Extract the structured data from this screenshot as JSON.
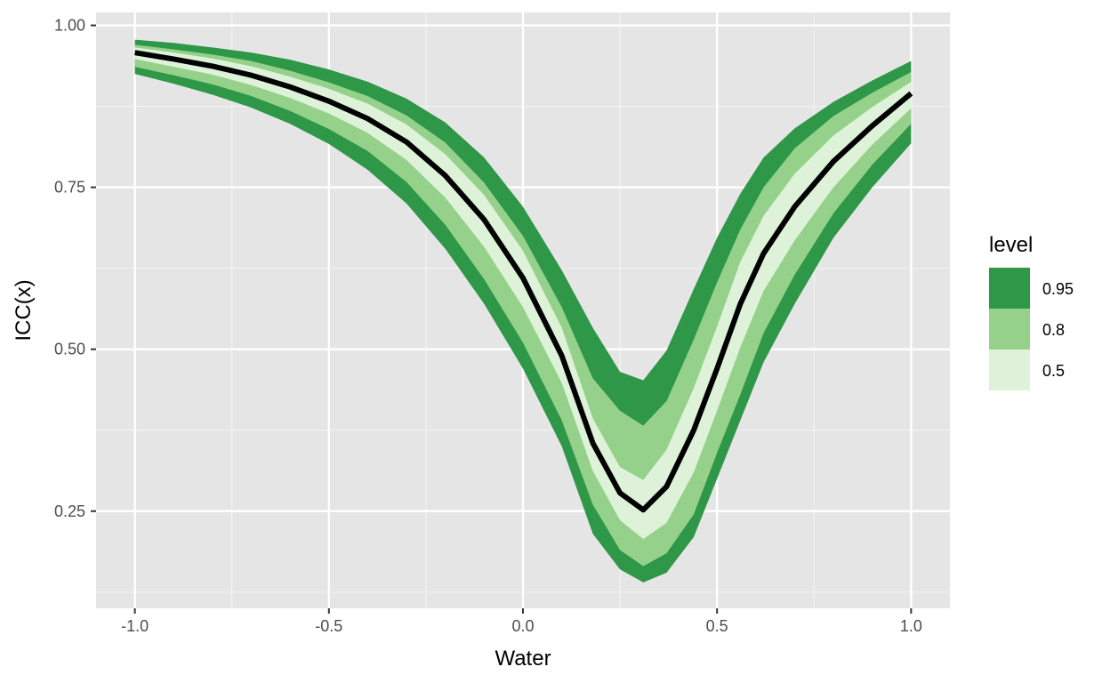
{
  "chart_data": {
    "type": "area",
    "title": "",
    "xlabel": "Water",
    "ylabel": "ICC(x)",
    "xlim": [
      -1.1,
      1.1
    ],
    "ylim": [
      0.1,
      1.02
    ],
    "x_ticks": [
      -1.0,
      -0.5,
      0.0,
      0.5,
      1.0
    ],
    "x_tick_labels": [
      "-1.0",
      "-0.5",
      "0.0",
      "0.5",
      "1.0"
    ],
    "y_ticks": [
      0.25,
      0.5,
      0.75,
      1.0
    ],
    "y_tick_labels": [
      "0.25",
      "0.50",
      "0.75",
      "1.00"
    ],
    "grid": true,
    "legend": {
      "title": "level",
      "position": "right",
      "entries": [
        {
          "label": "0.95",
          "color": "#2e9748"
        },
        {
          "label": "0.8",
          "color": "#95d18a"
        },
        {
          "label": "0.5",
          "color": "#ddf2d8"
        }
      ]
    },
    "x": [
      -1.0,
      -0.9,
      -0.8,
      -0.7,
      -0.6,
      -0.5,
      -0.4,
      -0.3,
      -0.2,
      -0.1,
      0.0,
      0.1,
      0.18,
      0.25,
      0.31,
      0.37,
      0.44,
      0.5,
      0.56,
      0.62,
      0.7,
      0.8,
      0.9,
      1.0
    ],
    "median": [
      0.958,
      0.948,
      0.937,
      0.923,
      0.905,
      0.883,
      0.856,
      0.82,
      0.768,
      0.7,
      0.61,
      0.49,
      0.355,
      0.278,
      0.252,
      0.288,
      0.375,
      0.47,
      0.57,
      0.648,
      0.72,
      0.79,
      0.845,
      0.895
    ],
    "bands": [
      {
        "level": "0.95",
        "lower": [
          0.925,
          0.91,
          0.893,
          0.873,
          0.848,
          0.817,
          0.777,
          0.725,
          0.655,
          0.57,
          0.47,
          0.35,
          0.215,
          0.16,
          0.14,
          0.155,
          0.21,
          0.3,
          0.39,
          0.48,
          0.57,
          0.672,
          0.75,
          0.818
        ],
        "upper": [
          0.978,
          0.973,
          0.966,
          0.958,
          0.947,
          0.932,
          0.913,
          0.887,
          0.85,
          0.796,
          0.72,
          0.622,
          0.533,
          0.465,
          0.452,
          0.498,
          0.593,
          0.672,
          0.74,
          0.796,
          0.841,
          0.882,
          0.915,
          0.945
        ]
      },
      {
        "level": "0.8",
        "lower": [
          0.936,
          0.923,
          0.909,
          0.891,
          0.868,
          0.84,
          0.806,
          0.758,
          0.692,
          0.608,
          0.51,
          0.39,
          0.26,
          0.19,
          0.165,
          0.185,
          0.245,
          0.34,
          0.43,
          0.525,
          0.615,
          0.71,
          0.785,
          0.848
        ]
      },
      {
        "level": "0.8_upper",
        "upper": [
          0.97,
          0.963,
          0.955,
          0.945,
          0.93,
          0.912,
          0.891,
          0.861,
          0.819,
          0.757,
          0.675,
          0.565,
          0.455,
          0.405,
          0.382,
          0.42,
          0.515,
          0.603,
          0.685,
          0.75,
          0.81,
          0.86,
          0.896,
          0.928
        ]
      },
      {
        "level": "0.5",
        "lower": [
          0.948,
          0.936,
          0.924,
          0.908,
          0.888,
          0.864,
          0.834,
          0.792,
          0.734,
          0.658,
          0.565,
          0.448,
          0.312,
          0.236,
          0.207,
          0.232,
          0.31,
          0.405,
          0.503,
          0.59,
          0.668,
          0.75,
          0.816,
          0.872
        ],
        "upper": [
          0.966,
          0.958,
          0.949,
          0.937,
          0.921,
          0.902,
          0.879,
          0.847,
          0.801,
          0.738,
          0.652,
          0.533,
          0.393,
          0.318,
          0.298,
          0.345,
          0.44,
          0.535,
          0.635,
          0.706,
          0.771,
          0.83,
          0.874,
          0.913
        ]
      }
    ],
    "colors": {
      "panel": "#e5e5e5",
      "grid_major": "#ffffff",
      "median_line": "#000000",
      "band_95": "#2e9748",
      "band_80": "#95d18a",
      "band_50": "#ddf2d8"
    }
  }
}
